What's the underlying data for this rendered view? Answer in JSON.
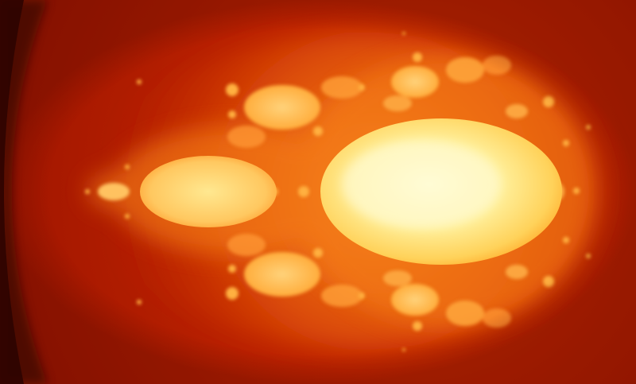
{
  "image": {
    "subject": "mandelbrot-fractal",
    "palette": {
      "dark_edge": "#3a0500",
      "background": "#b31b00",
      "deep_red": "#c82400",
      "orange": "#f06a10",
      "glow": "#ff9a2a",
      "bulb": "#ffc860",
      "bright": "#ffe890",
      "core": "#fffbc8"
    }
  }
}
